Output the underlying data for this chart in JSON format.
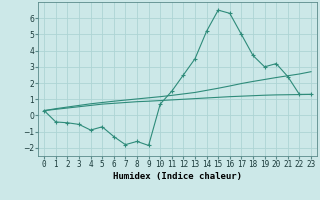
{
  "x": [
    0,
    1,
    2,
    3,
    4,
    5,
    6,
    7,
    8,
    9,
    10,
    11,
    12,
    13,
    14,
    15,
    16,
    17,
    18,
    19,
    20,
    21,
    22,
    23
  ],
  "y_curve": [
    0.3,
    -0.4,
    -0.45,
    -0.55,
    -0.9,
    -0.7,
    -1.3,
    -1.8,
    -1.6,
    -1.85,
    0.7,
    1.5,
    2.5,
    3.5,
    5.2,
    6.5,
    6.3,
    5.0,
    3.7,
    3.0,
    3.2,
    2.4,
    1.3,
    1.3
  ],
  "y_line1": [
    0.3,
    0.38,
    0.46,
    0.54,
    0.62,
    0.7,
    0.75,
    0.8,
    0.85,
    0.88,
    0.92,
    0.96,
    1.0,
    1.04,
    1.08,
    1.12,
    1.16,
    1.19,
    1.22,
    1.25,
    1.27,
    1.28,
    1.29,
    1.3
  ],
  "y_line2": [
    0.3,
    0.42,
    0.52,
    0.62,
    0.72,
    0.8,
    0.88,
    0.95,
    1.02,
    1.09,
    1.16,
    1.24,
    1.33,
    1.42,
    1.55,
    1.68,
    1.82,
    1.97,
    2.1,
    2.22,
    2.34,
    2.45,
    2.56,
    2.7
  ],
  "line_color": "#2e8b7a",
  "bg_color": "#cce8e8",
  "grid_color": "#aed4d4",
  "xlabel": "Humidex (Indice chaleur)",
  "ylim": [
    -2.5,
    7.0
  ],
  "xlim": [
    -0.5,
    23.5
  ],
  "yticks": [
    -2,
    -1,
    0,
    1,
    2,
    3,
    4,
    5,
    6
  ],
  "xtick_labels": [
    "0",
    "1",
    "2",
    "3",
    "4",
    "5",
    "6",
    "7",
    "8",
    "9",
    "10",
    "11",
    "12",
    "13",
    "14",
    "15",
    "16",
    "17",
    "18",
    "19",
    "20",
    "21",
    "22",
    "23"
  ],
  "xlabel_fontsize": 6.5,
  "tick_fontsize": 5.5
}
